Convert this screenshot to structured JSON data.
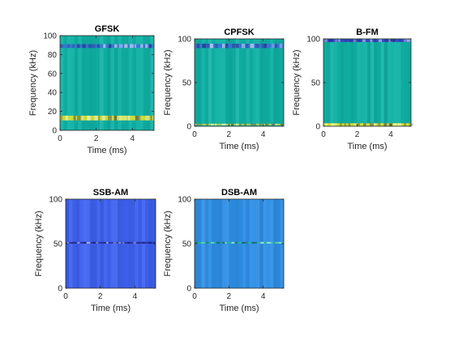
{
  "chart_data": [
    {
      "type": "heatmap",
      "title": "GFSK",
      "xlabel": "Time (ms)",
      "ylabel": "Frequency (kHz)",
      "xlim": [
        0,
        5.2
      ],
      "ylim": [
        0,
        100
      ],
      "xticks": [
        0,
        2,
        4
      ],
      "yticks": [
        0,
        20,
        40,
        60,
        80,
        100
      ],
      "background_color": "#10b2a6",
      "bands": [
        {
          "freq_center": 13,
          "freq_width": 5,
          "color": "#e5e52a",
          "label": "strong energy"
        },
        {
          "freq_center": 89,
          "freq_width": 4,
          "color": "#3a6fd6",
          "label": "weak energy"
        }
      ]
    },
    {
      "type": "heatmap",
      "title": "CPFSK",
      "xlabel": "Time (ms)",
      "ylabel": "Frequency (kHz)",
      "xlim": [
        0,
        5.2
      ],
      "ylim": [
        0,
        100
      ],
      "xticks": [
        0,
        2,
        4
      ],
      "yticks": [
        0,
        50,
        100
      ],
      "background_color": "#10b2a6",
      "bands": [
        {
          "freq_center": 92,
          "freq_width": 5,
          "color": "#3a6fd6",
          "label": "weak energy"
        },
        {
          "freq_center": 2,
          "freq_width": 2,
          "color": "#b5d64a",
          "label": "edge"
        }
      ]
    },
    {
      "type": "heatmap",
      "title": "B-FM",
      "xlabel": "Time (ms)",
      "ylabel": "Frequency (kHz)",
      "xlim": [
        0,
        5.2
      ],
      "ylim": [
        0,
        100
      ],
      "xticks": [
        0,
        2,
        4
      ],
      "yticks": [
        0,
        50,
        100
      ],
      "background_color": "#10b2a6",
      "bands": [
        {
          "freq_center": 98,
          "freq_width": 3,
          "color": "#3a35c8",
          "label": "low energy"
        },
        {
          "freq_center": 2,
          "freq_width": 3,
          "color": "#f5e61e",
          "label": "high energy"
        }
      ]
    },
    {
      "type": "heatmap",
      "title": "SSB-AM",
      "xlabel": "Time (ms)",
      "ylabel": "Frequency (kHz)",
      "xlim": [
        0,
        5.2
      ],
      "ylim": [
        0,
        100
      ],
      "xticks": [
        0,
        2,
        4
      ],
      "yticks": [
        0,
        50,
        100
      ],
      "background_color": "#3e62f0",
      "bands": [
        {
          "freq_center": 51,
          "freq_width": 2,
          "color": "#2a2fa0",
          "label": "carrier line"
        }
      ]
    },
    {
      "type": "heatmap",
      "title": "DSB-AM",
      "xlabel": "Time (ms)",
      "ylabel": "Frequency (kHz)",
      "xlim": [
        0,
        5.2
      ],
      "ylim": [
        0,
        100
      ],
      "xticks": [
        0,
        2,
        4
      ],
      "yticks": [
        0,
        50,
        100
      ],
      "background_color": "#2f8fe6",
      "bands": [
        {
          "freq_center": 51,
          "freq_width": 2,
          "color": "#20b79e",
          "label": "carrier line"
        }
      ]
    }
  ],
  "colors": {
    "axis": "#262626",
    "yellow": "#f5e61e",
    "teal": "#10b2a6",
    "blue": "#3e62f0",
    "dark_blue": "#2a2fa0"
  }
}
